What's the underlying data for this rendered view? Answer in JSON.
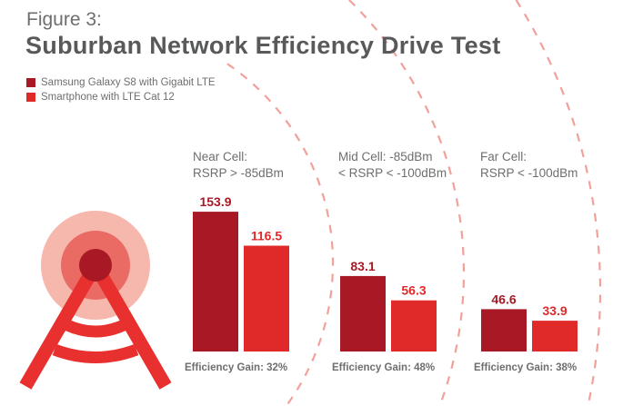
{
  "header": {
    "figure_label": "Figure 3:",
    "title": "Suburban Network Efficiency Drive Test"
  },
  "colors": {
    "series1": "#a81925",
    "series2": "#e02a2a",
    "ring_outer": "#f6b7ad",
    "ring_mid": "#ea6a64",
    "tower": "#e8312f",
    "dash": "#f2a09a"
  },
  "chart_data": {
    "type": "bar",
    "title": "Suburban Network Efficiency Drive Test",
    "categories": [
      "Near Cell",
      "Mid Cell",
      "Far Cell"
    ],
    "category_labels": [
      [
        "Near Cell:",
        "RSRP > -85dBm"
      ],
      [
        "Mid Cell: -85dBm",
        "< RSRP < -100dBm"
      ],
      [
        "Far Cell:",
        "RSRP < -100dBm"
      ]
    ],
    "series": [
      {
        "name": "Samsung Galaxy S8 with Gigabit LTE",
        "values": [
          153.9,
          83.1,
          46.6
        ],
        "labels": [
          "153.9",
          "83.1",
          "46.6"
        ]
      },
      {
        "name": "Smartphone with LTE Cat 12",
        "values": [
          116.5,
          56.3,
          33.9
        ],
        "labels": [
          "116.5",
          "56.3",
          "33.9"
        ]
      }
    ],
    "annotations": [
      "Efficiency Gain: 32%",
      "Efficiency Gain: 48%",
      "Efficiency Gain: 38%"
    ],
    "xlabel": "",
    "ylabel": "",
    "ylim": [
      0,
      160
    ],
    "grid": false,
    "legend": "top-left"
  }
}
